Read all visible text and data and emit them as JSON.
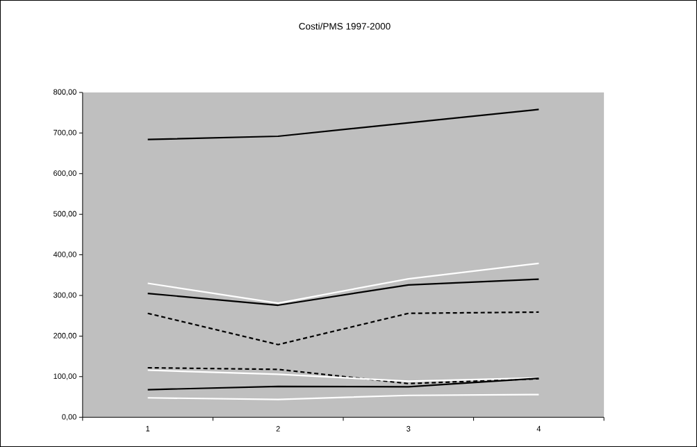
{
  "chart_data": {
    "type": "line",
    "title": "Costi/PMS 1997-2000",
    "categories": [
      "1",
      "2",
      "3",
      "4"
    ],
    "ylim": [
      0,
      800
    ],
    "yticks": [
      {
        "value": 0,
        "label": "0,00"
      },
      {
        "value": 100,
        "label": "100,00"
      },
      {
        "value": 200,
        "label": "200,00"
      },
      {
        "value": 300,
        "label": "300,00"
      },
      {
        "value": 400,
        "label": "400,00"
      },
      {
        "value": 500,
        "label": "500,00"
      },
      {
        "value": 600,
        "label": "600,00"
      },
      {
        "value": 700,
        "label": "700,00"
      },
      {
        "value": 800,
        "label": "800,00"
      }
    ],
    "grid": false,
    "legend": false,
    "marker": "none",
    "series": [
      {
        "color": "#000000",
        "line_style": "solid",
        "values": [
          684,
          692,
          725,
          758
        ]
      },
      {
        "color": "#ffffff",
        "line_style": "solid",
        "values": [
          330,
          281,
          341,
          379
        ]
      },
      {
        "color": "#000000",
        "line_style": "solid",
        "values": [
          305,
          276,
          326,
          340
        ]
      },
      {
        "color": "#000000",
        "line_style": "dashed",
        "values": [
          256,
          179,
          256,
          259
        ]
      },
      {
        "color": "#000000",
        "line_style": "dashed",
        "values": [
          122,
          118,
          83,
          95
        ]
      },
      {
        "color": "#ffffff",
        "line_style": "solid",
        "values": [
          116,
          106,
          89,
          97
        ]
      },
      {
        "color": "#000000",
        "line_style": "solid",
        "values": [
          68,
          76,
          75,
          96
        ]
      },
      {
        "color": "#ffffff",
        "line_style": "solid",
        "values": [
          48,
          44,
          54,
          56
        ]
      }
    ]
  }
}
